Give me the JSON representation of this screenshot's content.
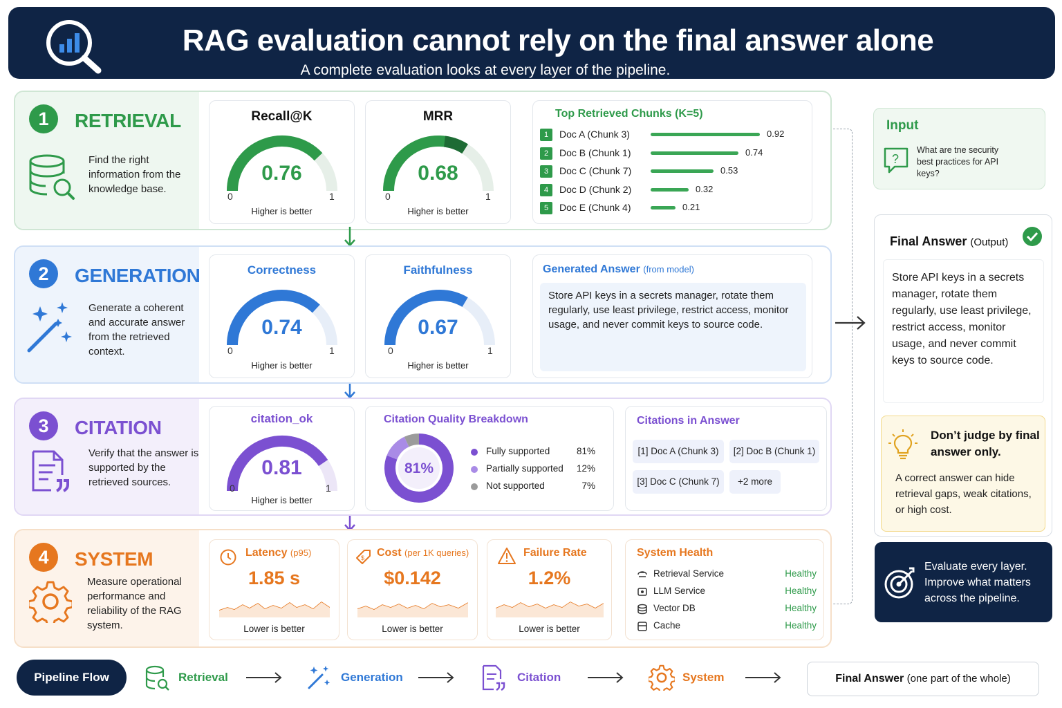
{
  "header": {
    "title": "RAG evaluation cannot rely on the final answer alone",
    "subtitle": "A complete evaluation looks at every layer of the pipeline."
  },
  "colors": {
    "navy": "#0f2445",
    "green": "#2e9a4a",
    "blue": "#2f78d6",
    "purple": "#7b50d1",
    "orange": "#e6771f"
  },
  "retrieval": {
    "number": "1",
    "title": "RETRIEVAL",
    "desc": "Find the right information from the knowledge base.",
    "recall": {
      "title": "Recall@K",
      "value": "0.76",
      "fraction": 0.76,
      "min": "0",
      "max": "1",
      "note": "Higher is better"
    },
    "mrr": {
      "title": "MRR",
      "value": "0.68",
      "fraction": 0.68,
      "min": "0",
      "max": "1",
      "note": "Higher is better"
    },
    "chunks": {
      "title": "Top Retrieved Chunks (K=5)",
      "items": [
        {
          "rank": "1",
          "label": "Doc A (Chunk 3)",
          "score": "0.92",
          "value": 0.92
        },
        {
          "rank": "2",
          "label": "Doc B (Chunk 1)",
          "score": "0.74",
          "value": 0.74
        },
        {
          "rank": "3",
          "label": "Doc C (Chunk 7)",
          "score": "0.53",
          "value": 0.53
        },
        {
          "rank": "4",
          "label": "Doc D (Chunk 2)",
          "score": "0.32",
          "value": 0.32
        },
        {
          "rank": "5",
          "label": "Doc E (Chunk 4)",
          "score": "0.21",
          "value": 0.21
        }
      ]
    }
  },
  "generation": {
    "number": "2",
    "title": "GENERATION",
    "desc": "Generate a coherent and accurate answer from the retrieved context.",
    "correctness": {
      "title": "Correctness",
      "value": "0.74",
      "fraction": 0.74,
      "min": "0",
      "max": "1",
      "note": "Higher is better"
    },
    "faithfulness": {
      "title": "Faithfulness",
      "value": "0.67",
      "fraction": 0.67,
      "min": "0",
      "max": "1",
      "note": "Higher is better"
    },
    "answer": {
      "title": "Generated Answer",
      "title_suffix": "(from model)",
      "text": "Store API keys in a secrets manager, rotate them regularly, use least privilege, restrict access, monitor usage, and never commit keys to source code."
    }
  },
  "citation": {
    "number": "3",
    "title": "CITATION",
    "desc": "Verify that the answer is supported by the retrieved sources.",
    "ok": {
      "title": "citation_ok",
      "value": "0.81",
      "fraction": 0.81,
      "min": "0",
      "max": "1",
      "note": "Higher is better"
    },
    "breakdown": {
      "title": "Citation Quality Breakdown",
      "center": "81%",
      "items": [
        {
          "label": "Fully supported",
          "pct": "81%",
          "value": 81,
          "color": "#7b50d1"
        },
        {
          "label": "Partially supported",
          "pct": "12%",
          "value": 12,
          "color": "#a98be6"
        },
        {
          "label": "Not supported",
          "pct": "7%",
          "value": 7,
          "color": "#9b9b9b"
        }
      ]
    },
    "cites": {
      "title": "Citations in Answer",
      "items": [
        "[1] Doc A (Chunk 3)",
        "[2] Doc B (Chunk 1)",
        "[3] Doc C (Chunk 7)",
        "+2 more"
      ]
    }
  },
  "system": {
    "number": "4",
    "title": "SYSTEM",
    "desc": "Measure operational performance and reliability of the RAG system.",
    "latency": {
      "title": "Latency",
      "suffix": "(p95)",
      "value": "1.85 s",
      "note": "Lower is better"
    },
    "cost": {
      "title": "Cost",
      "suffix": "(per 1K queries)",
      "value": "$0.142",
      "note": "Lower is better"
    },
    "failure": {
      "title": "Failure Rate",
      "value": "1.2%",
      "note": "Lower is better"
    },
    "health": {
      "title": "System Health",
      "items": [
        {
          "name": "Retrieval Service",
          "status": "Healthy"
        },
        {
          "name": "LLM Service",
          "status": "Healthy"
        },
        {
          "name": "Vector DB",
          "status": "Healthy"
        },
        {
          "name": "Cache",
          "status": "Healthy"
        }
      ]
    }
  },
  "input": {
    "title": "Input",
    "question": "What are tne security best practices for API keys?"
  },
  "final": {
    "title": "Final Answer",
    "suffix": "(Output)",
    "text": "Store API keys in a secrets manager, rotate them regularly, use least privilege, restrict access, monitor usage, and never commit keys to source code."
  },
  "tip": {
    "title": "Don’t judge by final answer only.",
    "text": "A correct answer can hide retrieval gaps, weak citations, or high cost."
  },
  "cta": {
    "text": "Evaluate every layer. Improve what matters across the pipeline."
  },
  "flow": {
    "label": "Pipeline Flow",
    "steps": [
      "Retrieval",
      "Generation",
      "Citation",
      "System"
    ],
    "final": "Final Answer",
    "final_suffix": "(one part of the whole)"
  }
}
